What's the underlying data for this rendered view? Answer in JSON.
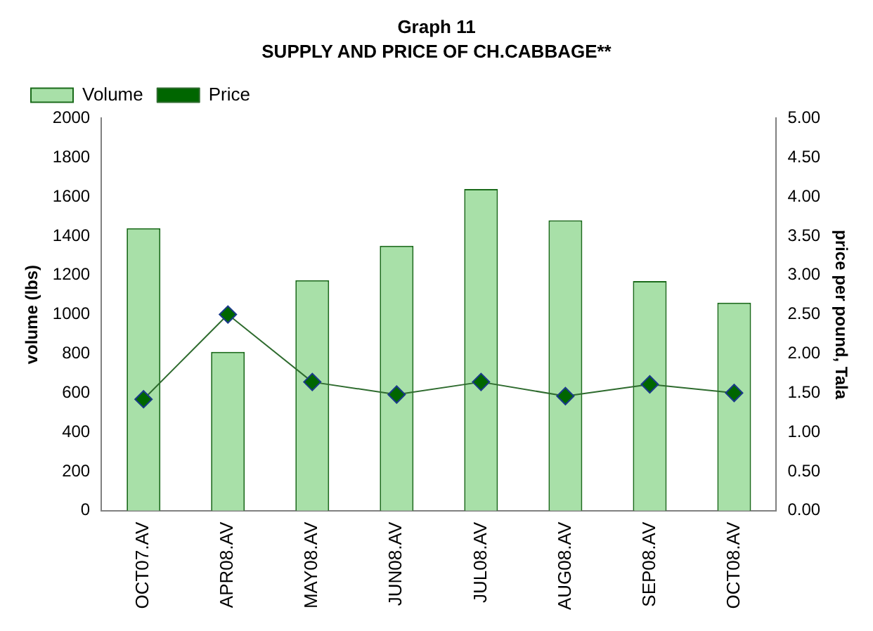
{
  "chart_data": {
    "type": "bar",
    "title": "Graph 11",
    "subtitle": "SUPPLY AND PRICE OF CH.CABBAGE**",
    "ylabel": "volume (lbs)",
    "y2label": "price per pound, Tala",
    "categories": [
      "OCT07.AV",
      "APR08.AV",
      "MAY08.AV",
      "JUN08.AV",
      "JUL08.AV",
      "AUG08.AV",
      "SEP08.AV",
      "OCT08.AV"
    ],
    "series": [
      {
        "name": "Volume",
        "color": "#a8e0a8",
        "values": [
          1440,
          810,
          1175,
          1350,
          1640,
          1480,
          1170,
          1060
        ]
      },
      {
        "name": "Price",
        "type": "line",
        "axis": "y2",
        "color": "#006600",
        "marker": "diamond",
        "values": [
          1.42,
          2.5,
          1.64,
          1.48,
          1.64,
          1.46,
          1.61,
          1.5
        ]
      }
    ],
    "ylim": [
      0,
      2000
    ],
    "yticks": [
      0,
      200,
      400,
      600,
      800,
      1000,
      1200,
      1400,
      1600,
      1800,
      2000
    ],
    "y2lim": [
      0,
      5
    ],
    "y2ticks": [
      {
        "value": 0,
        "label": "0.00"
      },
      {
        "value": 0.5,
        "label": "0.50"
      },
      {
        "value": 1,
        "label": "1.00"
      },
      {
        "value": 1.5,
        "label": "1.50"
      },
      {
        "value": 2,
        "label": "2.00"
      },
      {
        "value": 2.5,
        "label": "2.50"
      },
      {
        "value": 3,
        "label": "3.00"
      },
      {
        "value": 3.5,
        "label": "3.50"
      },
      {
        "value": 4,
        "label": "4.00"
      },
      {
        "value": 4.5,
        "label": "4.50"
      },
      {
        "value": 5,
        "label": "5.00"
      }
    ],
    "grid": false,
    "legend": "top left"
  }
}
